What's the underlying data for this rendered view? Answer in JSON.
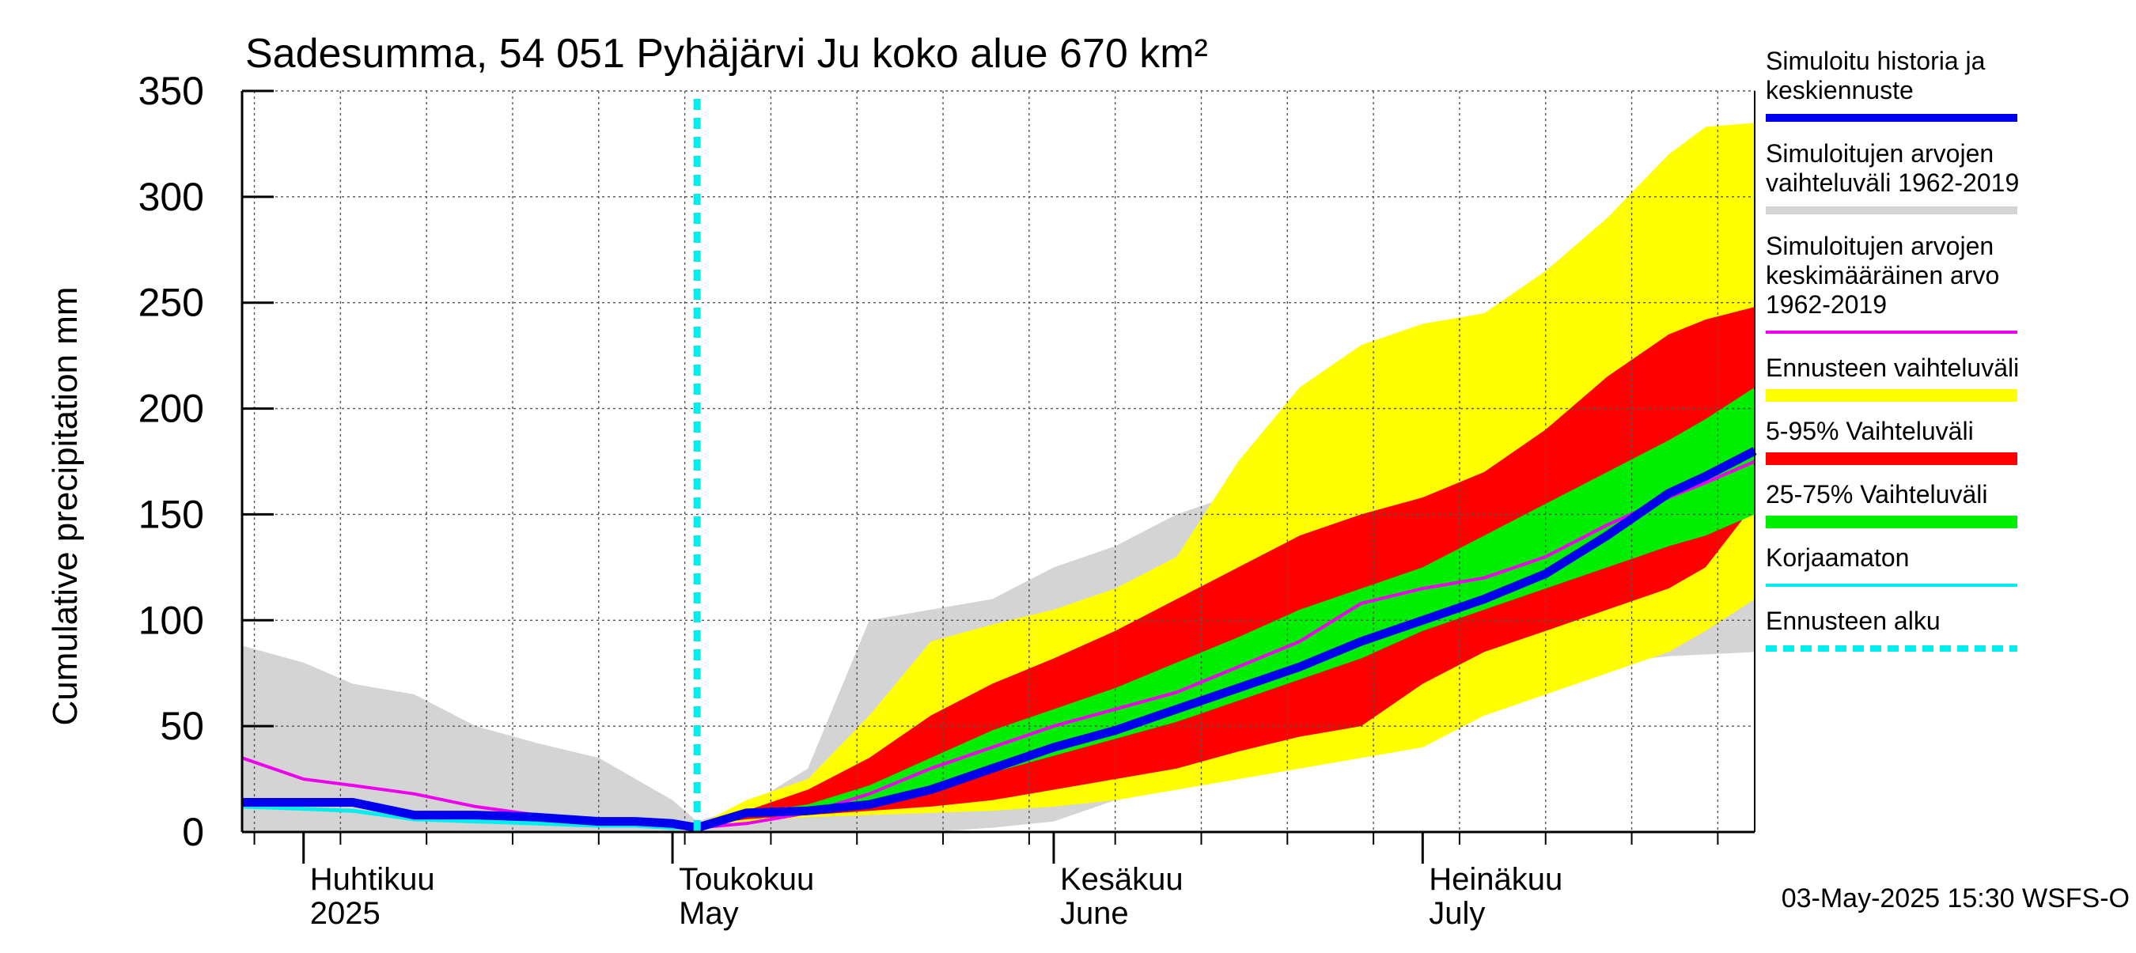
{
  "chart_data": {
    "type": "area",
    "title": "Sadesumma, 54 051 Pyhäjärvi Ju koko alue 670 km²",
    "ylabel": "Cumulative precipitation   mm",
    "xlabel": "",
    "ylim": [
      0,
      350
    ],
    "xlim": [
      "2025-03-27",
      "2025-07-28"
    ],
    "yticks": [
      0,
      50,
      100,
      150,
      200,
      250,
      300,
      350
    ],
    "grid": true,
    "legend_position": "right",
    "forecast_start": "2025-05-03",
    "timestamp": "03-May-2025 15:30 WSFS-O",
    "x_month_labels": [
      {
        "date": "2025-04-01",
        "lines": [
          "Huhtikuu",
          "2025"
        ]
      },
      {
        "date": "2025-05-01",
        "lines": [
          "Toukokuu",
          "May"
        ]
      },
      {
        "date": "2025-06-01",
        "lines": [
          "Kesäkuu",
          "June"
        ]
      },
      {
        "date": "2025-07-01",
        "lines": [
          "Heinäkuu",
          "July"
        ]
      }
    ],
    "colors": {
      "history_median": "#0000ee",
      "sim_range": "#d4d4d4",
      "sim_mean": "#ee00ee",
      "forecast_range": "#ffff00",
      "range_5_95": "#ff0000",
      "range_25_75": "#00ee00",
      "uncorrected": "#00eeee",
      "forecast_start": "#00eeee"
    },
    "legend": [
      {
        "key": "history",
        "lines": [
          "Simuloitu historia ja",
          "keskiennuste"
        ],
        "color": "#0000ee",
        "style": "thick"
      },
      {
        "key": "sim_range",
        "lines": [
          "Simuloitujen arvojen",
          "vaihteluväli 1962-2019"
        ],
        "color": "#d4d4d4",
        "style": "thick"
      },
      {
        "key": "sim_mean",
        "lines": [
          "Simuloitujen arvojen",
          "keskimääräinen arvo",
          "   1962-2019"
        ],
        "color": "#ee00ee",
        "style": "thin"
      },
      {
        "key": "forecast_range",
        "lines": [
          "Ennusteen vaihteluväli"
        ],
        "color": "#ffff00",
        "style": "band"
      },
      {
        "key": "range_5_95",
        "lines": [
          "5-95% Vaihteluväli"
        ],
        "color": "#ff0000",
        "style": "band"
      },
      {
        "key": "range_25_75",
        "lines": [
          "25-75% Vaihteluväli"
        ],
        "color": "#00ee00",
        "style": "band"
      },
      {
        "key": "uncorrected",
        "lines": [
          "Korjaamaton"
        ],
        "color": "#00eeee",
        "style": "thin"
      },
      {
        "key": "forecast_start",
        "lines": [
          "Ennusteen alku"
        ],
        "color": "#00eeee",
        "style": "dotted"
      }
    ],
    "series": {
      "sim_range": {
        "x": [
          "2025-03-27",
          "2025-04-01",
          "2025-04-05",
          "2025-04-10",
          "2025-04-15",
          "2025-04-20",
          "2025-04-25",
          "2025-05-01",
          "2025-05-03",
          "2025-05-07",
          "2025-05-12",
          "2025-05-17",
          "2025-05-22",
          "2025-05-27",
          "2025-06-01",
          "2025-06-06",
          "2025-06-11",
          "2025-06-16",
          "2025-06-21",
          "2025-06-26",
          "2025-07-01",
          "2025-07-06",
          "2025-07-11",
          "2025-07-16",
          "2025-07-21",
          "2025-07-28"
        ],
        "upper": [
          88,
          80,
          70,
          65,
          50,
          42,
          35,
          15,
          5,
          12,
          30,
          100,
          105,
          110,
          125,
          135,
          150,
          160,
          168,
          178,
          190,
          210,
          225,
          250,
          275,
          300
        ],
        "lower": [
          0,
          0,
          0,
          0,
          0,
          0,
          0,
          0,
          0,
          0,
          0,
          0,
          0,
          2,
          5,
          15,
          25,
          32,
          35,
          40,
          50,
          65,
          75,
          80,
          83,
          85
        ]
      },
      "forecast_range": {
        "x": [
          "2025-05-03",
          "2025-05-07",
          "2025-05-12",
          "2025-05-17",
          "2025-05-22",
          "2025-05-27",
          "2025-06-01",
          "2025-06-06",
          "2025-06-11",
          "2025-06-16",
          "2025-06-21",
          "2025-06-26",
          "2025-07-01",
          "2025-07-06",
          "2025-07-11",
          "2025-07-16",
          "2025-07-21",
          "2025-07-24",
          "2025-07-28"
        ],
        "upper": [
          3,
          15,
          25,
          55,
          90,
          98,
          105,
          115,
          130,
          175,
          210,
          230,
          240,
          245,
          265,
          290,
          320,
          333,
          335
        ],
        "lower": [
          3,
          5,
          7,
          8,
          9,
          10,
          12,
          15,
          20,
          25,
          30,
          35,
          40,
          55,
          65,
          75,
          85,
          95,
          110
        ]
      },
      "range_5_95": {
        "x": [
          "2025-05-03",
          "2025-05-07",
          "2025-05-12",
          "2025-05-17",
          "2025-05-22",
          "2025-05-27",
          "2025-06-01",
          "2025-06-06",
          "2025-06-11",
          "2025-06-16",
          "2025-06-21",
          "2025-06-26",
          "2025-07-01",
          "2025-07-06",
          "2025-07-11",
          "2025-07-16",
          "2025-07-21",
          "2025-07-24",
          "2025-07-28"
        ],
        "upper": [
          3,
          10,
          20,
          35,
          55,
          70,
          82,
          95,
          110,
          125,
          140,
          150,
          158,
          170,
          190,
          215,
          235,
          242,
          248
        ],
        "lower": [
          3,
          6,
          8,
          10,
          12,
          15,
          20,
          25,
          30,
          38,
          45,
          50,
          70,
          85,
          95,
          105,
          115,
          125,
          155
        ]
      },
      "range_25_75": {
        "x": [
          "2025-05-03",
          "2025-05-07",
          "2025-05-12",
          "2025-05-17",
          "2025-05-22",
          "2025-05-27",
          "2025-06-01",
          "2025-06-06",
          "2025-06-11",
          "2025-06-16",
          "2025-06-21",
          "2025-06-26",
          "2025-07-01",
          "2025-07-06",
          "2025-07-11",
          "2025-07-16",
          "2025-07-21",
          "2025-07-24",
          "2025-07-28"
        ],
        "upper": [
          3,
          9,
          13,
          22,
          35,
          48,
          58,
          68,
          80,
          92,
          105,
          115,
          125,
          140,
          155,
          170,
          185,
          195,
          210
        ],
        "lower": [
          3,
          7,
          9,
          13,
          20,
          28,
          36,
          44,
          52,
          62,
          72,
          82,
          95,
          105,
          115,
          125,
          135,
          140,
          150
        ]
      },
      "history_median": {
        "x": [
          "2025-03-27",
          "2025-04-01",
          "2025-04-05",
          "2025-04-10",
          "2025-04-15",
          "2025-04-20",
          "2025-04-25",
          "2025-04-28",
          "2025-05-01",
          "2025-05-03",
          "2025-05-07",
          "2025-05-12",
          "2025-05-17",
          "2025-05-22",
          "2025-05-27",
          "2025-06-01",
          "2025-06-06",
          "2025-06-11",
          "2025-06-16",
          "2025-06-21",
          "2025-06-26",
          "2025-07-01",
          "2025-07-06",
          "2025-07-11",
          "2025-07-16",
          "2025-07-21",
          "2025-07-24",
          "2025-07-28"
        ],
        "values": [
          14,
          14,
          14,
          8,
          8,
          7,
          5,
          5,
          4,
          2,
          9,
          10,
          13,
          20,
          30,
          40,
          48,
          58,
          68,
          78,
          90,
          100,
          110,
          122,
          140,
          160,
          168,
          180
        ]
      },
      "sim_mean": {
        "x": [
          "2025-03-27",
          "2025-04-01",
          "2025-04-05",
          "2025-04-10",
          "2025-04-15",
          "2025-04-20",
          "2025-04-25",
          "2025-04-28",
          "2025-05-01",
          "2025-05-03",
          "2025-05-07",
          "2025-05-12",
          "2025-05-17",
          "2025-05-22",
          "2025-05-27",
          "2025-06-01",
          "2025-06-06",
          "2025-06-11",
          "2025-06-16",
          "2025-06-21",
          "2025-06-26",
          "2025-07-01",
          "2025-07-06",
          "2025-07-11",
          "2025-07-16",
          "2025-07-21",
          "2025-07-24",
          "2025-07-28"
        ],
        "values": [
          35,
          25,
          22,
          18,
          12,
          8,
          5,
          4,
          4,
          2,
          4,
          9,
          18,
          30,
          40,
          50,
          58,
          66,
          78,
          90,
          108,
          115,
          120,
          130,
          145,
          158,
          165,
          175
        ]
      },
      "uncorrected": {
        "x": [
          "2025-03-27",
          "2025-04-01",
          "2025-04-05",
          "2025-04-10",
          "2025-04-15",
          "2025-04-20",
          "2025-04-25",
          "2025-04-28",
          "2025-05-01",
          "2025-05-03"
        ],
        "values": [
          12,
          11,
          10,
          6,
          5,
          4,
          3,
          3,
          2,
          2
        ]
      }
    }
  }
}
